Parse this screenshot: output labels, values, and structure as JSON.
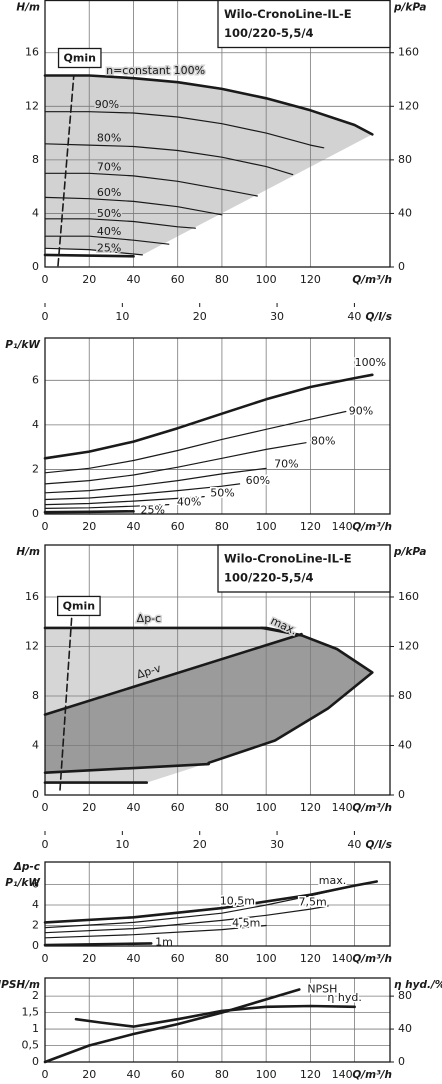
{
  "chart_data": [
    {
      "type": "line",
      "title": "Wilo-CronoLine-IL-E",
      "subtitle": "100/220-5,5/4",
      "ylabel": "H/m",
      "y2label": "p/kPa",
      "xlabel": "Q/m³/h",
      "x2label": "Q/l/s",
      "xlim": [
        0,
        156
      ],
      "xticks": [
        0,
        20,
        40,
        60,
        80,
        100,
        120
      ],
      "x2lim": [
        0,
        44.6
      ],
      "x2ticks": [
        0,
        10,
        20,
        30,
        40
      ],
      "ylim": [
        0,
        19.9
      ],
      "yticks": [
        0,
        4,
        8,
        12,
        16
      ],
      "y2lim": [
        0,
        199
      ],
      "y2ticks": [
        0,
        40,
        80,
        120,
        160
      ],
      "grid": true,
      "fill_colors": [
        "#d2d2d2"
      ],
      "series": [
        {
          "name": "n=constant 100%",
          "color": "#1a1a1a",
          "bold": true,
          "x": [
            0,
            20,
            40,
            60,
            80,
            100,
            120,
            140,
            148
          ],
          "values": [
            14.3,
            14.3,
            14.1,
            13.8,
            13.3,
            12.6,
            11.7,
            10.6,
            9.9
          ]
        },
        {
          "name": "90%",
          "color": "#1a1a1a",
          "x": [
            0,
            20,
            40,
            60,
            80,
            100,
            120,
            126
          ],
          "values": [
            11.6,
            11.6,
            11.5,
            11.2,
            10.7,
            10.0,
            9.1,
            8.9
          ]
        },
        {
          "name": "80%",
          "color": "#1a1a1a",
          "x": [
            0,
            20,
            40,
            60,
            80,
            100,
            112
          ],
          "values": [
            9.2,
            9.1,
            9.0,
            8.7,
            8.2,
            7.5,
            6.9
          ]
        },
        {
          "name": "70%",
          "color": "#1a1a1a",
          "x": [
            0,
            20,
            40,
            60,
            80,
            96
          ],
          "values": [
            7.0,
            7.0,
            6.8,
            6.4,
            5.8,
            5.3
          ]
        },
        {
          "name": "60%",
          "color": "#1a1a1a",
          "x": [
            0,
            20,
            40,
            60,
            80
          ],
          "values": [
            5.2,
            5.1,
            4.9,
            4.5,
            3.9
          ]
        },
        {
          "name": "50%",
          "color": "#1a1a1a",
          "x": [
            0,
            20,
            40,
            60,
            68
          ],
          "values": [
            3.6,
            3.6,
            3.4,
            3.0,
            2.9
          ]
        },
        {
          "name": "40%",
          "color": "#1a1a1a",
          "x": [
            0,
            20,
            40,
            56
          ],
          "values": [
            2.3,
            2.3,
            2.0,
            1.7
          ]
        },
        {
          "name": "25%",
          "color": "#1a1a1a",
          "x": [
            0,
            20,
            44
          ],
          "values": [
            1.4,
            1.3,
            0.9
          ]
        },
        {
          "color": "#1a1a1a",
          "bold": true,
          "x": [
            0,
            40
          ],
          "values": [
            0.9,
            0.8
          ]
        },
        {
          "name": "Qmin",
          "color": "#1a1a1a",
          "dashed": true,
          "x": [
            5.9,
            13
          ],
          "values": [
            0.1,
            14.3
          ]
        }
      ]
    },
    {
      "type": "line",
      "ylabel": "P₁/kW",
      "xlabel": "Q/m³/h",
      "xlim": [
        0,
        156
      ],
      "xticks": [
        0,
        20,
        40,
        60,
        80,
        100,
        120,
        140
      ],
      "ylim": [
        0,
        7.9
      ],
      "yticks": [
        0,
        2,
        4,
        6
      ],
      "grid": true,
      "series": [
        {
          "name": "100%",
          "color": "#1a1a1a",
          "bold": true,
          "x": [
            0,
            20,
            40,
            60,
            80,
            100,
            120,
            140,
            148
          ],
          "values": [
            2.5,
            2.8,
            3.25,
            3.85,
            4.5,
            5.15,
            5.7,
            6.1,
            6.25
          ]
        },
        {
          "name": "90%",
          "color": "#1a1a1a",
          "x": [
            0,
            20,
            40,
            60,
            80,
            100,
            120,
            136
          ],
          "values": [
            1.85,
            2.05,
            2.4,
            2.85,
            3.35,
            3.8,
            4.25,
            4.6
          ]
        },
        {
          "name": "80%",
          "color": "#1a1a1a",
          "x": [
            0,
            20,
            40,
            60,
            80,
            100,
            118
          ],
          "values": [
            1.35,
            1.5,
            1.75,
            2.1,
            2.5,
            2.9,
            3.2
          ]
        },
        {
          "name": "70%",
          "color": "#1a1a1a",
          "x": [
            0,
            20,
            40,
            60,
            80,
            100
          ],
          "values": [
            0.95,
            1.05,
            1.25,
            1.5,
            1.8,
            2.05
          ]
        },
        {
          "name": "60%",
          "color": "#1a1a1a",
          "x": [
            0,
            20,
            40,
            60,
            80,
            88
          ],
          "values": [
            0.65,
            0.72,
            0.87,
            1.05,
            1.25,
            1.35
          ]
        },
        {
          "name": "50%",
          "color": "#1a1a1a",
          "x": [
            0,
            20,
            40,
            60,
            72
          ],
          "values": [
            0.42,
            0.47,
            0.58,
            0.7,
            0.78
          ]
        },
        {
          "name": "40%",
          "color": "#1a1a1a",
          "x": [
            0,
            20,
            40,
            56
          ],
          "values": [
            0.25,
            0.28,
            0.35,
            0.42
          ]
        },
        {
          "name": "25%",
          "color": "#1a1a1a",
          "bold": true,
          "x": [
            0,
            20,
            40
          ],
          "values": [
            0.08,
            0.1,
            0.12
          ]
        }
      ]
    },
    {
      "type": "line",
      "title": "Wilo-CronoLine-IL-E",
      "subtitle": "100/220-5,5/4",
      "ylabel": "H/m",
      "y2label": "p/kPa",
      "xlabel": "Q/m³/h",
      "x2label": "Q/l/s",
      "xlim": [
        0,
        156
      ],
      "xticks": [
        0,
        20,
        40,
        60,
        80,
        100,
        120,
        140
      ],
      "x2lim": [
        0,
        44.6
      ],
      "x2ticks": [
        0,
        10,
        20,
        30,
        40
      ],
      "ylim": [
        0,
        20.2
      ],
      "yticks": [
        0,
        4,
        8,
        12,
        16
      ],
      "y2lim": [
        0,
        202
      ],
      "y2ticks": [
        0,
        40,
        80,
        120,
        160
      ],
      "grid": true,
      "fill_colors": [
        "#d6d6d6",
        "#9b9b9b"
      ],
      "series": [
        {
          "name": "Δp-c",
          "color": "#1a1a1a",
          "bold": true,
          "x": [
            0,
            100,
            116
          ],
          "values": [
            13.5,
            13.5,
            12.9
          ]
        },
        {
          "name": "Δp-v",
          "color": "#1a1a1a",
          "bold": true,
          "x": [
            0,
            116
          ],
          "values": [
            6.5,
            13.0
          ]
        },
        {
          "name": "max.",
          "color": "#1a1a1a",
          "bold": true,
          "x": [
            98,
            116,
            132,
            148,
            128,
            104,
            74
          ],
          "values": [
            13.5,
            12.9,
            11.8,
            9.9,
            7.0,
            4.4,
            2.6
          ]
        },
        {
          "color": "#1a1a1a",
          "bold": true,
          "x": [
            0,
            74
          ],
          "values": [
            1.8,
            2.5
          ]
        },
        {
          "color": "#1a1a1a",
          "bold": true,
          "x": [
            0,
            46
          ],
          "values": [
            1.0,
            1.0
          ]
        },
        {
          "name": "Qmin",
          "color": "#1a1a1a",
          "dashed": true,
          "x": [
            6.8,
            12.6
          ],
          "values": [
            0.4,
            15.8
          ]
        }
      ]
    },
    {
      "type": "line",
      "ylabel": [
        "Δp-c",
        "P₁/kW"
      ],
      "xlabel": "Q/m³/h",
      "xlim": [
        0,
        156
      ],
      "xticks": [
        0,
        20,
        40,
        60,
        80,
        100,
        120,
        140
      ],
      "ylim": [
        0,
        8.2
      ],
      "yticks": [
        0,
        2,
        4,
        6
      ],
      "grid": true,
      "series": [
        {
          "name": "max.",
          "color": "#1a1a1a",
          "bold": true,
          "x": [
            0,
            40,
            80,
            120,
            140,
            150
          ],
          "values": [
            2.3,
            2.8,
            3.7,
            5.0,
            5.9,
            6.3
          ]
        },
        {
          "name": "10,5m",
          "color": "#1a1a1a",
          "x": [
            0,
            40,
            80,
            100,
            120,
            140
          ],
          "values": [
            1.8,
            2.3,
            3.2,
            4.0,
            4.9,
            5.9
          ]
        },
        {
          "name": "7,5m",
          "color": "#1a1a1a",
          "x": [
            0,
            40,
            80,
            100,
            120,
            128
          ],
          "values": [
            1.3,
            1.7,
            2.5,
            3.0,
            3.6,
            3.9
          ]
        },
        {
          "name": "4,5m",
          "color": "#1a1a1a",
          "x": [
            0,
            40,
            80,
            100
          ],
          "values": [
            0.8,
            1.1,
            1.6,
            2.0
          ]
        },
        {
          "name": "1m",
          "color": "#1a1a1a",
          "bold": true,
          "x": [
            0,
            48
          ],
          "values": [
            0.1,
            0.25
          ]
        }
      ]
    },
    {
      "type": "line",
      "ylabel": "NPSH/m",
      "y2label": "η hyd./%",
      "xlabel": "Q/m³/h",
      "xlim": [
        0,
        156
      ],
      "xticks": [
        0,
        20,
        40,
        60,
        80,
        100,
        120,
        140
      ],
      "ylim": [
        0,
        2.55
      ],
      "yticks": [
        0,
        {
          "value": 0.5,
          "label": "0,5"
        },
        1,
        {
          "value": 1.5,
          "label": "1,5"
        },
        2
      ],
      "y2lim": [
        0,
        102
      ],
      "y2ticks": [
        0,
        40,
        80
      ],
      "grid": true,
      "series": [
        {
          "name": "NPSH",
          "color": "#1a1a1a",
          "bold": true,
          "x": [
            0,
            20,
            40,
            60,
            80,
            100,
            115
          ],
          "values": [
            0,
            0.5,
            0.85,
            1.15,
            1.5,
            1.9,
            2.2
          ]
        },
        {
          "name": "η hyd.",
          "color": "#1a1a1a",
          "bold": true,
          "axis": "y2",
          "x": [
            14,
            25,
            40,
            60,
            80,
            100,
            120,
            140
          ],
          "values": [
            52,
            48,
            43,
            52,
            62,
            67,
            68,
            67
          ]
        }
      ]
    }
  ]
}
